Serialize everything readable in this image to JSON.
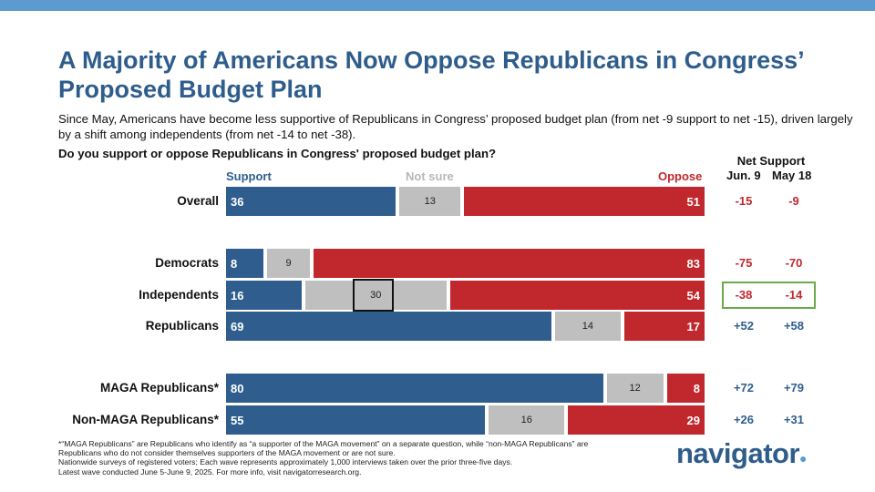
{
  "title": "A Majority of Americans Now Oppose Republicans in Congress’ Proposed Budget Plan",
  "subtitle": "Since May, Americans have become less supportive of Republicans in Congress’ proposed budget plan (from net -9 support to net -15), driven largely by a shift among independents (from net -14 to net -38).",
  "question": "Do you support or oppose Republicans in Congress' proposed budget plan?",
  "headers": {
    "support": "Support",
    "not_sure": "Not sure",
    "oppose": "Oppose"
  },
  "net_header": {
    "title": "Net Support",
    "col1": "Jun. 9",
    "col2": "May 18"
  },
  "colors": {
    "support": "#2f5e8e",
    "not_sure": "#bfbfbf",
    "oppose": "#c0282d",
    "net_positive": "#2f5e8e",
    "net_negative": "#c0282d",
    "highlight_green": "#6aaa4a"
  },
  "chart_data": {
    "type": "bar",
    "orientation": "horizontal-stacked-100",
    "categories": [
      "Overall",
      "Democrats",
      "Independents",
      "Republicans",
      "MAGA Republicans*",
      "Non-MAGA Republicans*"
    ],
    "series": [
      {
        "name": "Support",
        "values": [
          36,
          8,
          16,
          69,
          80,
          55
        ]
      },
      {
        "name": "Not sure",
        "values": [
          13,
          9,
          30,
          14,
          12,
          16
        ]
      },
      {
        "name": "Oppose",
        "values": [
          51,
          83,
          54,
          17,
          8,
          29
        ]
      }
    ],
    "net_support": {
      "jun9": [
        "-15",
        "-75",
        "-38",
        "+52",
        "+72",
        "+26"
      ],
      "may18": [
        "-9",
        "-70",
        "-14",
        "+58",
        "+79",
        "+31"
      ]
    },
    "highlighted_category": "Independents"
  },
  "footnote": "*“MAGA Republicans” are Republicans who identify as “a supporter of the MAGA movement” on a separate question, while “non-MAGA Republicans” are Republicans who do not consider themselves supporters of the MAGA movement or are not sure.\nNationwide surveys of registered voters; Each wave represents approximately 1,000 interviews taken over the prior three-five days.\nLatest wave conducted June 5-June 9, 2025. For more info, visit navigatorresearch.org.",
  "logo": {
    "text": "navigator",
    "dot": "●"
  }
}
